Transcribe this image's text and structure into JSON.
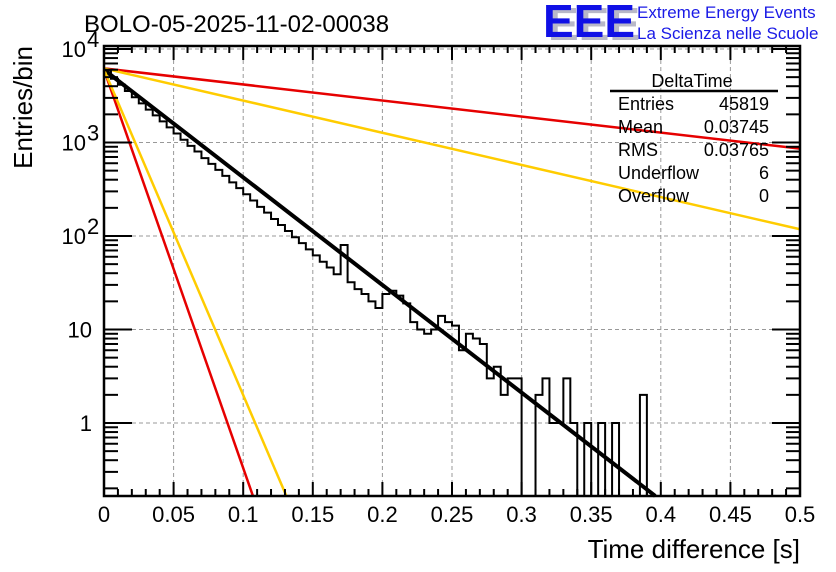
{
  "chart_data": {
    "type": "bar",
    "title": "BOLO-05-2025-11-02-00038",
    "xlabel": "Time difference [s]",
    "ylabel": "Entries/bin",
    "xlim": [
      0,
      0.5
    ],
    "ylim": [
      0.166,
      10000
    ],
    "yscale": "log",
    "grid": true,
    "bin_width": 0.005,
    "x_ticks": [
      "0",
      "0.05",
      "0.1",
      "0.15",
      "0.2",
      "0.25",
      "0.3",
      "0.35",
      "0.4",
      "0.45",
      "0.5"
    ],
    "x_tick_values": [
      0,
      0.05,
      0.1,
      0.15,
      0.2,
      0.25,
      0.3,
      0.35,
      0.4,
      0.45,
      0.5
    ],
    "y_ticks": [
      {
        "value": 10000,
        "base": "10",
        "exp": "4"
      },
      {
        "value": 1000,
        "base": "10",
        "exp": "3"
      },
      {
        "value": 100,
        "base": "10",
        "exp": "2"
      },
      {
        "value": 10,
        "base": "10",
        "exp": ""
      },
      {
        "value": 1,
        "base": "1",
        "exp": ""
      }
    ],
    "histogram": {
      "name": "DeltaTime",
      "color": "#000000",
      "values": [
        5900,
        4800,
        4150,
        3550,
        3050,
        2620,
        2250,
        1950,
        1680,
        1450,
        1250,
        1070,
        920,
        800,
        680,
        590,
        510,
        440,
        375,
        325,
        280,
        240,
        205,
        178,
        152,
        131,
        113,
        97,
        84,
        72,
        62,
        53,
        46,
        39,
        80,
        32,
        27,
        24,
        20,
        17,
        24,
        26,
        23,
        19,
        12,
        10,
        9,
        10,
        14,
        12,
        11,
        6,
        9,
        8,
        7,
        3,
        4,
        2,
        3,
        3,
        0,
        0,
        2,
        3,
        1,
        1,
        3,
        1,
        0,
        1,
        0,
        1,
        0,
        1,
        0,
        0,
        0,
        2,
        0,
        0,
        0,
        0,
        0,
        0,
        0,
        0,
        0,
        0,
        0,
        0,
        0,
        0,
        0,
        0,
        0,
        0,
        0,
        0,
        0,
        0
      ]
    },
    "series": [
      {
        "name": "fit",
        "color": "#000000",
        "type": "exp",
        "y0": 6000,
        "x_end": 0.396,
        "y_end": 0.166
      },
      {
        "name": "red-slow",
        "color": "#e60000",
        "type": "exp",
        "y0": 6200,
        "x_end": 0.5,
        "y_end": 860
      },
      {
        "name": "yellow-slow",
        "color": "#ffcc00",
        "type": "exp",
        "y0": 6200,
        "x_end": 0.5,
        "y_end": 118
      },
      {
        "name": "red-fast",
        "color": "#e60000",
        "type": "exp",
        "y0": 6000,
        "x_end": 0.107,
        "y_end": 0.166
      },
      {
        "name": "yellow-fast",
        "color": "#ffcc00",
        "type": "exp",
        "y0": 6000,
        "x_end": 0.131,
        "y_end": 0.166
      }
    ],
    "stats_box": {
      "title": "DeltaTime",
      "rows": [
        {
          "label": "Entries",
          "value": "45819"
        },
        {
          "label": "Mean",
          "value": "0.03745"
        },
        {
          "label": "RMS",
          "value": "0.03765"
        },
        {
          "label": "Underflow",
          "value": "6"
        },
        {
          "label": "Overflow",
          "value": "0"
        }
      ]
    }
  },
  "logo": {
    "letters": "EEE",
    "line1": "Extreme Energy Events",
    "line2": "La Scienza nelle Scuole",
    "color": "#1a1ae6"
  }
}
